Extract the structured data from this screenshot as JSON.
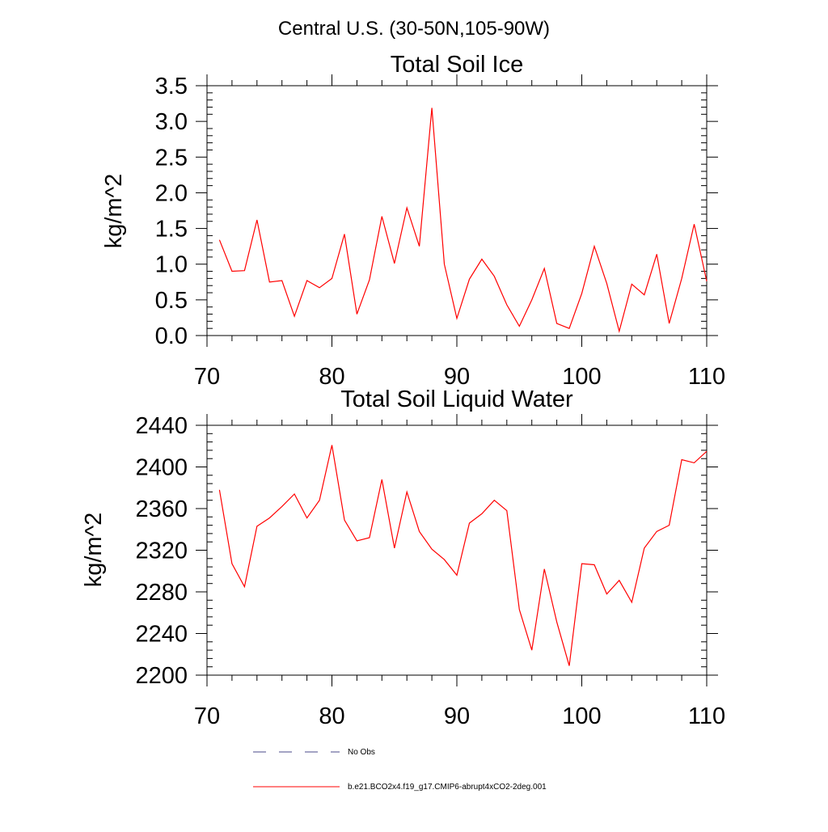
{
  "figure_title": "Central U.S. (30-50N,105-90W)",
  "chart_data": [
    {
      "type": "line",
      "title": "Total Soil Ice",
      "xlabel": "",
      "ylabel": "kg/m^2",
      "xlim": [
        70,
        110
      ],
      "ylim": [
        0,
        3.5
      ],
      "x_ticks": [
        70,
        80,
        90,
        100,
        110
      ],
      "x_tick_labels": [
        "70",
        "80",
        "90",
        "100",
        "110"
      ],
      "y_ticks": [
        0,
        0.5,
        1.0,
        1.5,
        2.0,
        2.5,
        3.0,
        3.5
      ],
      "y_tick_labels": [
        "0.0",
        "0.5",
        "1.0",
        "1.5",
        "2.0",
        "2.5",
        "3.0",
        "3.5"
      ],
      "grid": false,
      "series": [
        {
          "name": "b.e21.BCO2x4.f19_g17.CMIP6-abrupt4xCO2-2deg.001",
          "color": "#ff0000",
          "x": [
            71,
            72,
            73,
            74,
            75,
            76,
            77,
            78,
            79,
            80,
            81,
            82,
            83,
            84,
            85,
            86,
            87,
            88,
            89,
            90,
            91,
            92,
            93,
            94,
            95,
            96,
            97,
            98,
            99,
            100,
            101,
            102,
            103,
            104,
            105,
            106,
            107,
            108,
            109,
            110
          ],
          "values": [
            1.34,
            0.9,
            0.91,
            1.62,
            0.75,
            0.77,
            0.27,
            0.77,
            0.67,
            0.8,
            1.42,
            0.3,
            0.78,
            1.67,
            1.01,
            1.79,
            1.25,
            3.19,
            1.0,
            0.24,
            0.79,
            1.07,
            0.83,
            0.43,
            0.13,
            0.5,
            0.94,
            0.17,
            0.1,
            0.59,
            1.25,
            0.73,
            0.06,
            0.72,
            0.57,
            1.14,
            0.17,
            0.8,
            1.56,
            0.76
          ]
        }
      ]
    },
    {
      "type": "line",
      "title": "Total Soil Liquid Water",
      "xlabel": "",
      "ylabel": "kg/m^2",
      "xlim": [
        70,
        110
      ],
      "ylim": [
        2200,
        2440
      ],
      "x_ticks": [
        70,
        80,
        90,
        100,
        110
      ],
      "x_tick_labels": [
        "70",
        "80",
        "90",
        "100",
        "110"
      ],
      "y_ticks": [
        2200,
        2240,
        2280,
        2320,
        2360,
        2400,
        2440
      ],
      "y_tick_labels": [
        "2200",
        "2240",
        "2280",
        "2320",
        "2360",
        "2400",
        "2440"
      ],
      "grid": false,
      "series": [
        {
          "name": "b.e21.BCO2x4.f19_g17.CMIP6-abrupt4xCO2-2deg.001",
          "color": "#ff0000",
          "x": [
            71,
            72,
            73,
            74,
            75,
            76,
            77,
            78,
            79,
            80,
            81,
            82,
            83,
            84,
            85,
            86,
            87,
            88,
            89,
            90,
            91,
            92,
            93,
            94,
            95,
            96,
            97,
            98,
            99,
            100,
            101,
            102,
            103,
            104,
            105,
            106,
            107,
            108,
            109,
            110
          ],
          "values": [
            2378,
            2307,
            2285,
            2343,
            2351,
            2362,
            2374,
            2351,
            2368,
            2421,
            2349,
            2329,
            2332,
            2388,
            2322,
            2376,
            2338,
            2321,
            2311,
            2296,
            2346,
            2355,
            2368,
            2358,
            2263,
            2224,
            2302,
            2251,
            2209,
            2307,
            2306,
            2278,
            2291,
            2270,
            2322,
            2338,
            2344,
            2407,
            2404,
            2415
          ]
        }
      ]
    }
  ],
  "legend": {
    "placement": "bottom",
    "entries": [
      {
        "label": "No Obs",
        "style": "dashed",
        "color": "#4a4a8a"
      },
      {
        "label": "b.e21.BCO2x4.f19_g17.CMIP6-abrupt4xCO2-2deg.001",
        "style": "solid",
        "color": "#ff0000"
      }
    ]
  }
}
